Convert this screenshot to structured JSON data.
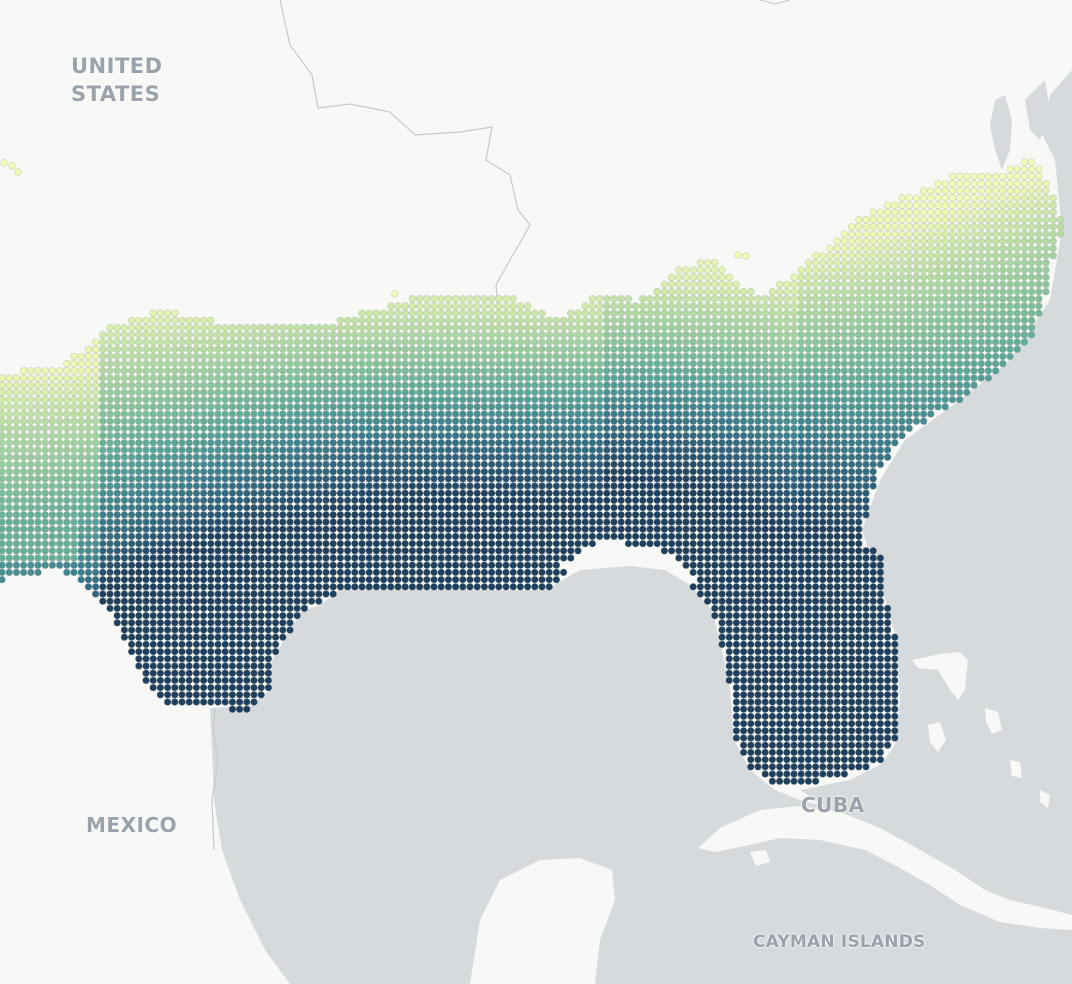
{
  "map": {
    "labels": {
      "united_states_line1": "UNITED",
      "united_states_line2": "STATES",
      "mexico": "MEXICO",
      "cuba": "CUBA",
      "cayman_islands": "CAYMAN ISLANDS"
    },
    "colors": {
      "land": "#f8f8f6",
      "water": "#d6dadd",
      "border": "#c6c9cc",
      "label": "#9aa3ab",
      "ramp": [
        "#f3f9b8",
        "#b9dea4",
        "#86c39b",
        "#5aa59a",
        "#3e808f",
        "#2e5f7b",
        "#1f3f5f"
      ]
    }
  }
}
